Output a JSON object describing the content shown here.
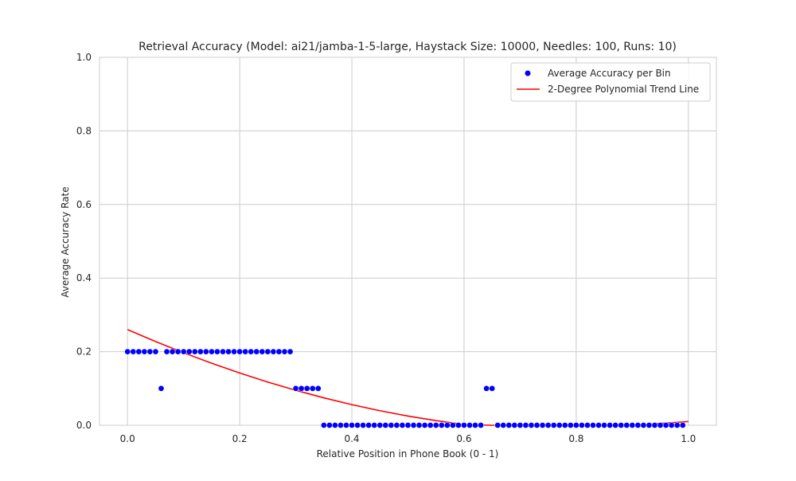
{
  "chart_data": {
    "type": "scatter",
    "title": "Retrieval Accuracy (Model: ai21/jamba-1-5-large, Haystack Size: 10000, Needles: 100, Runs: 10)",
    "xlabel": "Relative Position in Phone Book (0 - 1)",
    "ylabel": "Average Accuracy Rate",
    "xlim": [
      -0.05,
      1.05
    ],
    "ylim": [
      0.0,
      1.0
    ],
    "xticks": [
      0.0,
      0.2,
      0.4,
      0.6,
      0.8,
      1.0
    ],
    "yticks": [
      0.0,
      0.2,
      0.4,
      0.6,
      0.8,
      1.0
    ],
    "xtick_labels": [
      "0.0",
      "0.2",
      "0.4",
      "0.6",
      "0.8",
      "1.0"
    ],
    "ytick_labels": [
      "0.0",
      "0.2",
      "0.4",
      "0.6",
      "0.8",
      "1.0"
    ],
    "grid": true,
    "legend_position": "top-right",
    "series": [
      {
        "name": "Average Accuracy per Bin",
        "kind": "scatter",
        "color": "#0000ff",
        "x": [
          0.0,
          0.01,
          0.02,
          0.03,
          0.04,
          0.05,
          0.06,
          0.07,
          0.08,
          0.09,
          0.1,
          0.11,
          0.12,
          0.13,
          0.14,
          0.15,
          0.16,
          0.17,
          0.18,
          0.19,
          0.2,
          0.21,
          0.22,
          0.23,
          0.24,
          0.25,
          0.26,
          0.27,
          0.28,
          0.29,
          0.3,
          0.31,
          0.32,
          0.33,
          0.34,
          0.35,
          0.36,
          0.37,
          0.38,
          0.39,
          0.4,
          0.41,
          0.42,
          0.43,
          0.44,
          0.45,
          0.46,
          0.47,
          0.48,
          0.49,
          0.5,
          0.51,
          0.52,
          0.53,
          0.54,
          0.55,
          0.56,
          0.57,
          0.58,
          0.59,
          0.6,
          0.61,
          0.62,
          0.63,
          0.64,
          0.65,
          0.66,
          0.67,
          0.68,
          0.69,
          0.7,
          0.71,
          0.72,
          0.73,
          0.74,
          0.75,
          0.76,
          0.77,
          0.78,
          0.79,
          0.8,
          0.81,
          0.82,
          0.83,
          0.84,
          0.85,
          0.86,
          0.87,
          0.88,
          0.89,
          0.9,
          0.91,
          0.92,
          0.93,
          0.94,
          0.95,
          0.96,
          0.97,
          0.98,
          0.99
        ],
        "y": [
          0.2,
          0.2,
          0.2,
          0.2,
          0.2,
          0.2,
          0.1,
          0.2,
          0.2,
          0.2,
          0.2,
          0.2,
          0.2,
          0.2,
          0.2,
          0.2,
          0.2,
          0.2,
          0.2,
          0.2,
          0.2,
          0.2,
          0.2,
          0.2,
          0.2,
          0.2,
          0.2,
          0.2,
          0.2,
          0.2,
          0.1,
          0.1,
          0.1,
          0.1,
          0.1,
          0.0,
          0.0,
          0.0,
          0.0,
          0.0,
          0.0,
          0.0,
          0.0,
          0.0,
          0.0,
          0.0,
          0.0,
          0.0,
          0.0,
          0.0,
          0.0,
          0.0,
          0.0,
          0.0,
          0.0,
          0.0,
          0.0,
          0.0,
          0.0,
          0.0,
          0.0,
          0.0,
          0.0,
          0.0,
          0.1,
          0.1,
          0.0,
          0.0,
          0.0,
          0.0,
          0.0,
          0.0,
          0.0,
          0.0,
          0.0,
          0.0,
          0.0,
          0.0,
          0.0,
          0.0,
          0.0,
          0.0,
          0.0,
          0.0,
          0.0,
          0.0,
          0.0,
          0.0,
          0.0,
          0.0,
          0.0,
          0.0,
          0.0,
          0.0,
          0.0,
          0.0,
          0.0,
          0.0,
          0.0,
          0.0
        ]
      },
      {
        "name": "2-Degree Polynomial Trend Line",
        "kind": "line",
        "color": "#ff0000",
        "x": [
          0.0,
          0.05,
          0.1,
          0.15,
          0.2,
          0.25,
          0.3,
          0.35,
          0.4,
          0.45,
          0.5,
          0.55,
          0.6,
          0.65,
          0.7,
          0.75,
          0.8,
          0.85,
          0.9,
          0.95,
          1.0
        ],
        "y": [
          0.26,
          0.2275,
          0.197,
          0.1685,
          0.142,
          0.1175,
          0.095,
          0.0745,
          0.056,
          0.0395,
          0.025,
          0.0125,
          0.002,
          0.0,
          0.0,
          0.0,
          0.0,
          0.0,
          0.0,
          0.005,
          0.01
        ]
      }
    ]
  }
}
